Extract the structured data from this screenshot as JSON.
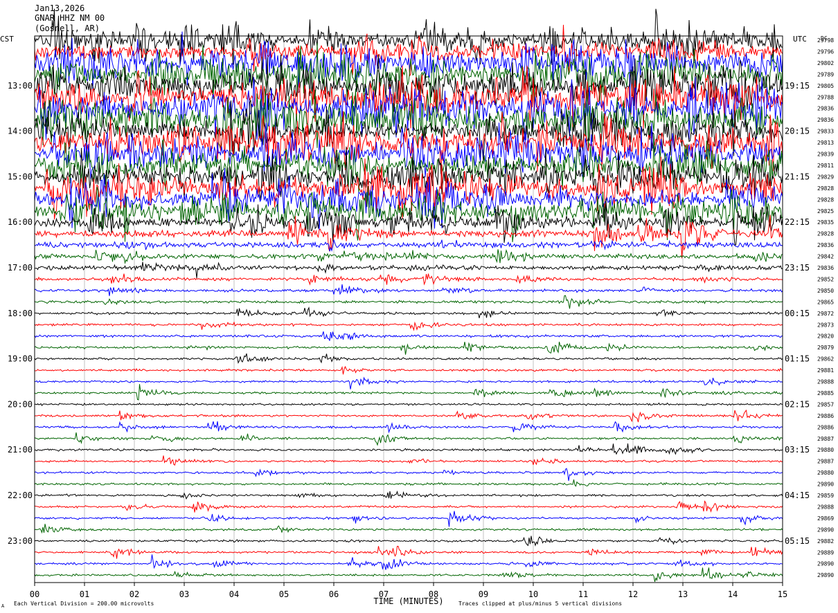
{
  "header": {
    "date": "Jan13,2026",
    "station": "GNAR HHZ NM 00",
    "location": "(Gosnell, AR)"
  },
  "left_tz_label": "CST",
  "right_tz_label": "UTC",
  "dc_label": "DC",
  "footer": {
    "scale_note": "Each Vertical Division =  200.00 microvolts",
    "clip_note": "Traces clipped at plus/minus 5 vertical divisions",
    "corner_mark": "A"
  },
  "chart_data": {
    "type": "line",
    "subtype": "helicorder",
    "xlabel": "TIME (MINUTES)",
    "xlim": [
      0,
      15
    ],
    "x_ticks": [
      "00",
      "01",
      "02",
      "03",
      "04",
      "05",
      "06",
      "07",
      "08",
      "09",
      "10",
      "11",
      "12",
      "13",
      "14",
      "15"
    ],
    "trace_minutes": 15,
    "trace_colors": [
      "#000000",
      "#ff0000",
      "#0000ff",
      "#006400"
    ],
    "local_hour_labels": [
      "13:00",
      "14:00",
      "15:00",
      "16:00",
      "17:00",
      "18:00",
      "19:00",
      "20:00",
      "21:00",
      "22:00",
      "23:00"
    ],
    "utc_hour_labels": [
      "19:15",
      "20:15",
      "21:15",
      "22:15",
      "23:15",
      "00:15",
      "01:15",
      "02:15",
      "03:15",
      "04:15",
      "05:15"
    ],
    "first_hour_label_row": 4,
    "rows_per_hour": 4,
    "dc_offsets": [
      "29798",
      "29796",
      "29802",
      "29789",
      "29805",
      "29788",
      "29836",
      "29836",
      "29833",
      "29813",
      "29839",
      "29811",
      "29829",
      "29828",
      "29828",
      "29825",
      "29835",
      "29828",
      "29836",
      "29842",
      "29836",
      "29852",
      "29850",
      "29865",
      "29872",
      "29873",
      "29820",
      "29879",
      "29862",
      "29881",
      "29888",
      "29885",
      "29857",
      "29886",
      "29886",
      "29887",
      "29880",
      "29887",
      "29880",
      "29890",
      "29859",
      "29888",
      "29869",
      "29890",
      "29882",
      "29889",
      "29890",
      "29890"
    ],
    "row_activity": [
      7,
      7,
      9,
      9,
      10,
      10,
      10,
      10,
      9.5,
      9.5,
      9.5,
      9,
      9,
      8.5,
      8,
      7,
      4.5,
      3.5,
      3,
      2.5,
      2.4,
      1.5,
      1.4,
      1.3,
      1.2,
      1.2,
      1.2,
      1.1,
      1.1,
      1.1,
      1.1,
      1.1,
      1.1,
      1.1,
      1.1,
      1.1,
      1.1,
      1.1,
      1.1,
      1.1,
      1.1,
      1.1,
      1.1,
      1.1,
      1.1,
      1.1,
      1.1,
      1.1
    ]
  }
}
